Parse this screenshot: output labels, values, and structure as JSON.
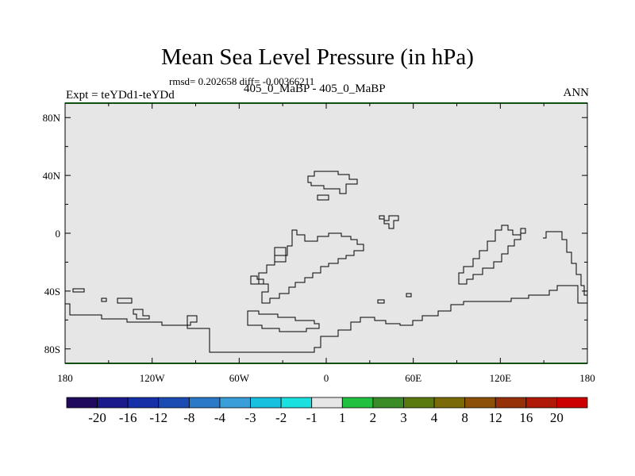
{
  "header": {
    "title": "Mean Sea Level Pressure (in hPa)",
    "stats": "rmsd= 0.202658 diff= -0.00366211",
    "left_label": "Expt = teYDd1-teYDd",
    "center_label": "405_0_MaBP - 405_0_MaBP",
    "right_label": "ANN"
  },
  "chart_data": {
    "type": "contour-map",
    "title": "Mean Sea Level Pressure (in hPa)",
    "field": "difference",
    "x_range": [
      -180,
      180
    ],
    "y_range": [
      -90,
      90
    ],
    "x_ticks": [
      {
        "value": -180,
        "label": "180"
      },
      {
        "value": -120,
        "label": "120W"
      },
      {
        "value": -60,
        "label": "60W"
      },
      {
        "value": 0,
        "label": "0"
      },
      {
        "value": 60,
        "label": "60E"
      },
      {
        "value": 120,
        "label": "120E"
      },
      {
        "value": 180,
        "label": "180"
      }
    ],
    "y_ticks": [
      {
        "value": 80,
        "label": "80N"
      },
      {
        "value": 40,
        "label": "40N"
      },
      {
        "value": 0,
        "label": "0"
      },
      {
        "value": -40,
        "label": "40S"
      },
      {
        "value": -80,
        "label": "80S"
      }
    ],
    "colorbar": {
      "colors": [
        "#1f0a5e",
        "#1a1a8c",
        "#1630a8",
        "#1a4cb4",
        "#2a78c8",
        "#3a9ed8",
        "#18c0e0",
        "#1ae0e0",
        "#e6e6e6",
        "#22c040",
        "#3a8c28",
        "#5a7a10",
        "#7a6a08",
        "#8c5008",
        "#963008",
        "#b01808",
        "#cc0000"
      ],
      "labels": [
        "-20",
        "-16",
        "-12",
        "-8",
        "-4",
        "-3",
        "-2",
        "-1",
        "1",
        "2",
        "3",
        "4",
        "8",
        "12",
        "16",
        "20"
      ]
    },
    "background_fill": "#e6e6e6",
    "contour_color": "#000000",
    "edge_color": "#22a022"
  }
}
